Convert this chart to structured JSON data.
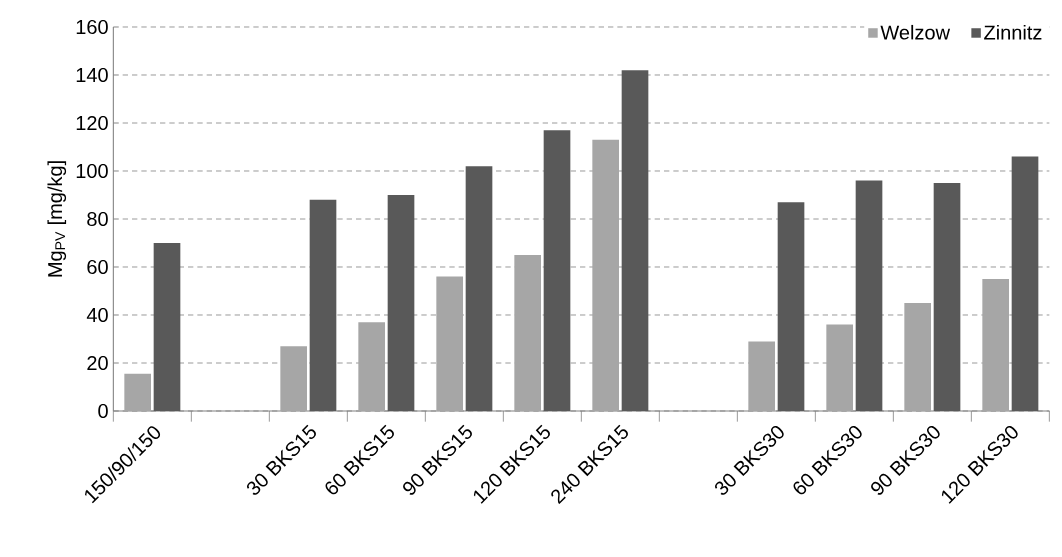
{
  "chart_data": {
    "type": "bar",
    "ylabel": "Mg$_{PV}$ [mg/kg]",
    "categories": [
      "150/90/150",
      null,
      "30 BKS15",
      "60 BKS15",
      "90 BKS15",
      "120 BKS15",
      "240 BKS15",
      null,
      "30 BKS30",
      "60 BKS30",
      "90 BKS30",
      "120 BKS30"
    ],
    "series": [
      {
        "name": "Welzow",
        "color": "#a6a6a6",
        "values": [
          15.5,
          null,
          27,
          37,
          56,
          65,
          113,
          null,
          29,
          36,
          45,
          55
        ]
      },
      {
        "name": "Zinnitz",
        "color": "#595959",
        "values": [
          70,
          null,
          88,
          90,
          102,
          117,
          142,
          null,
          87,
          96,
          95,
          106
        ]
      }
    ],
    "ylim": [
      0,
      160
    ],
    "yticks": [
      0,
      20,
      40,
      60,
      80,
      100,
      120,
      140,
      160
    ],
    "grid": "y",
    "legend": "top right"
  }
}
